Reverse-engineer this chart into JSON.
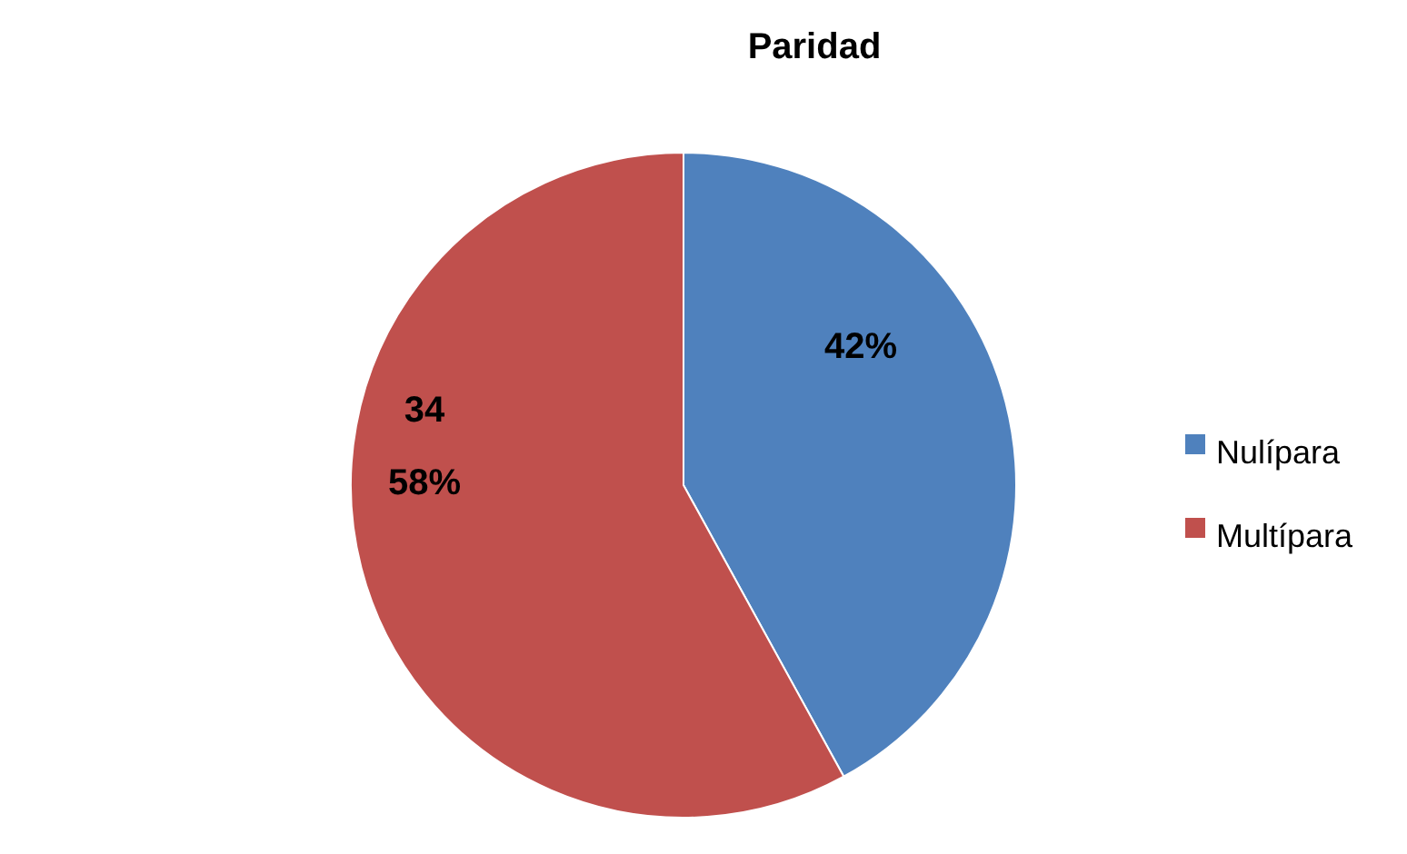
{
  "chart_data": {
    "type": "pie",
    "title": "Paridad",
    "categories": [
      "Nulípara",
      "Multípara"
    ],
    "values": [
      42,
      58
    ],
    "colors": [
      "#4f81bd",
      "#c0504d"
    ],
    "value_labels": [
      "42%",
      "34\n58%"
    ],
    "legend": "right"
  }
}
